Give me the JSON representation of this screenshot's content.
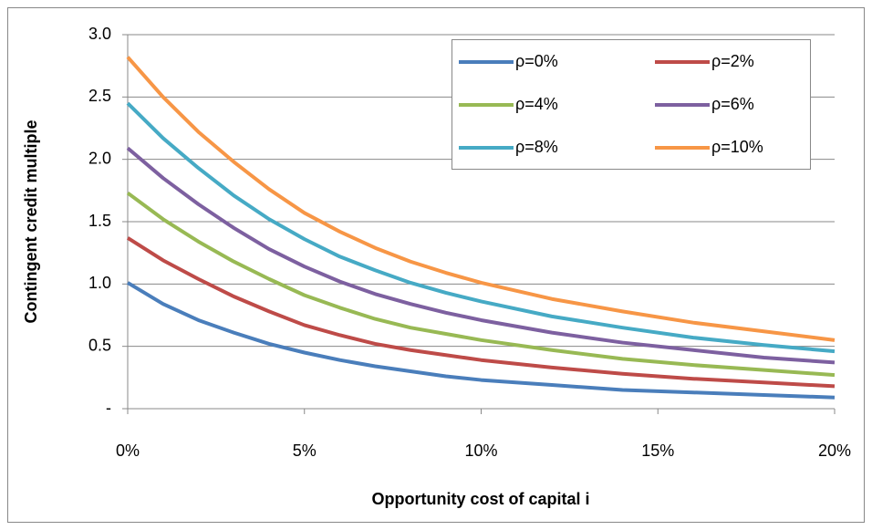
{
  "chart_data": {
    "type": "line",
    "xlabel": "Opportunity cost of capital i",
    "ylabel": "Contingent credit multiple",
    "x": [
      0,
      1,
      2,
      3,
      4,
      5,
      6,
      7,
      8,
      9,
      10,
      12,
      14,
      16,
      18,
      20
    ],
    "series": [
      {
        "name": "ρ=0%",
        "color": "#4a7ebb",
        "values": [
          1.01,
          0.84,
          0.71,
          0.61,
          0.52,
          0.45,
          0.39,
          0.34,
          0.3,
          0.26,
          0.23,
          0.19,
          0.15,
          0.13,
          0.11,
          0.09
        ]
      },
      {
        "name": "ρ=2%",
        "color": "#be4b48",
        "values": [
          1.37,
          1.19,
          1.04,
          0.9,
          0.78,
          0.67,
          0.59,
          0.52,
          0.47,
          0.43,
          0.39,
          0.33,
          0.28,
          0.24,
          0.21,
          0.18
        ]
      },
      {
        "name": "ρ=4%",
        "color": "#98b954",
        "values": [
          1.73,
          1.52,
          1.34,
          1.18,
          1.04,
          0.91,
          0.81,
          0.72,
          0.65,
          0.6,
          0.55,
          0.47,
          0.4,
          0.35,
          0.31,
          0.27
        ]
      },
      {
        "name": "ρ=6%",
        "color": "#7d60a0",
        "values": [
          2.09,
          1.85,
          1.64,
          1.45,
          1.28,
          1.14,
          1.02,
          0.92,
          0.84,
          0.77,
          0.71,
          0.61,
          0.53,
          0.47,
          0.41,
          0.37
        ]
      },
      {
        "name": "ρ=8%",
        "color": "#46aac5",
        "values": [
          2.45,
          2.17,
          1.93,
          1.71,
          1.52,
          1.36,
          1.22,
          1.11,
          1.01,
          0.93,
          0.86,
          0.74,
          0.65,
          0.57,
          0.51,
          0.46
        ]
      },
      {
        "name": "ρ=10%",
        "color": "#f79646",
        "values": [
          2.82,
          2.5,
          2.22,
          1.98,
          1.76,
          1.57,
          1.42,
          1.29,
          1.18,
          1.09,
          1.01,
          0.88,
          0.78,
          0.69,
          0.62,
          0.55
        ]
      }
    ],
    "xlim": [
      0,
      20
    ],
    "xticks": [
      {
        "value": 0,
        "label": "0%"
      },
      {
        "value": 5,
        "label": "5%"
      },
      {
        "value": 10,
        "label": "10%"
      },
      {
        "value": 15,
        "label": "15%"
      },
      {
        "value": 20,
        "label": "20%"
      }
    ],
    "ylim": [
      0,
      3
    ],
    "yticks": [
      {
        "value": 0,
        "label": "-"
      },
      0.5,
      {
        "value": 1,
        "label": "1.0"
      },
      1.5,
      {
        "value": 2,
        "label": "2.0"
      },
      2.5,
      {
        "value": 3,
        "label": "3.0"
      }
    ],
    "grid": true,
    "legend": "upper right"
  }
}
